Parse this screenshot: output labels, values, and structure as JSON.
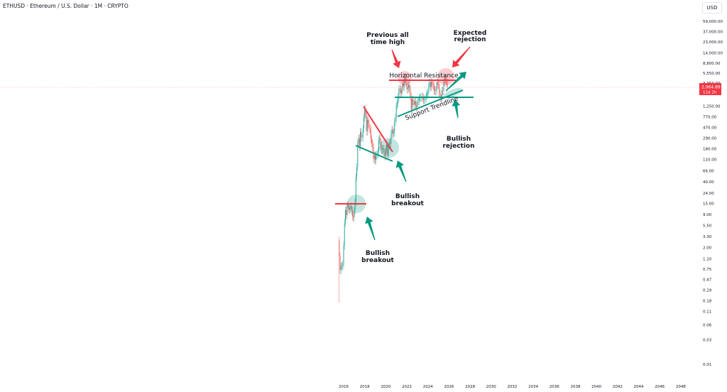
{
  "header": {
    "title": "ETHUSD · Ethereum / U.S. Dollar · 1M · CRYPTO",
    "currency_button": "USD"
  },
  "price_label": {
    "price": "2,964.89",
    "countdown": "11d 2h",
    "color": "#f23645"
  },
  "colors": {
    "up": "#26a69a",
    "down": "#ef5350",
    "annotation_green": "#089981",
    "annotation_red": "#f23645"
  },
  "annotations": {
    "prev_ath": [
      "Previous all",
      "time high"
    ],
    "expected_rejection": [
      "Expected",
      "rejection"
    ],
    "horizontal_resistance": "Horizontal Resistance",
    "support_trendline": "Support Trendline",
    "bullish_rejection": [
      "Bullish",
      "rejection"
    ],
    "bullish_breakout_1": [
      "Bullish",
      "breakout"
    ],
    "bullish_breakout_2": [
      "Bullish",
      "breakout"
    ]
  },
  "chart_data": {
    "type": "candlestick",
    "title": "ETHUSD · Ethereum / U.S. Dollar · 1M · CRYPTO",
    "y_scale": "log",
    "ylim": [
      0.01,
      59000
    ],
    "xlim": [
      2015.5,
      2049
    ],
    "y_ticks": [
      "59,000.00",
      "37,000.00",
      "23,000.00",
      "14,000.00",
      "8,800.00",
      "5,550.00",
      "3,350.00",
      "1,250.00",
      "770.00",
      "470.00",
      "290.00",
      "180.00",
      "110.00",
      "66.00",
      "40.00",
      "24.00",
      "15.00",
      "9.00",
      "5.50",
      "3.30",
      "2.00",
      "1.20",
      "0.75",
      "0.47",
      "0.29",
      "0.18",
      "0.11",
      "0.06",
      "0.03",
      "0.01"
    ],
    "x_ticks": [
      "2016",
      "2018",
      "2020",
      "2022",
      "2024",
      "2026",
      "2028",
      "2030",
      "2032",
      "2034",
      "2036",
      "2038",
      "2040",
      "2042",
      "2044",
      "2046",
      "2048"
    ],
    "start": "2015-08",
    "monthly_close": [
      1.35,
      0.73,
      0.87,
      0.87,
      0.93,
      2.2,
      6.3,
      11,
      8.8,
      14,
      12.5,
      11.4,
      11.9,
      13.2,
      11,
      8.5,
      8.0,
      10.7,
      16,
      50,
      79,
      230,
      290,
      200,
      390,
      300,
      305,
      447,
      755,
      1118,
      856,
      397,
      669,
      578,
      455,
      433,
      283,
      233,
      198,
      114,
      133,
      107,
      136,
      141,
      162,
      268,
      291,
      218,
      172,
      180,
      183,
      152,
      130,
      180,
      218,
      133,
      206,
      231,
      226,
      345,
      434,
      360,
      386,
      616,
      737,
      1312,
      1419,
      1918,
      2773,
      2714,
      2275,
      2536,
      3434,
      3001,
      4288,
      4630,
      3683,
      2688,
      2919,
      3283,
      2730,
      1942,
      1067,
      1679,
      1554,
      1328,
      1572,
      1295,
      1196,
      1585,
      1605,
      1822,
      1870,
      1874,
      1934,
      1856,
      1646,
      1671,
      1815,
      2052,
      2282,
      2283,
      3340,
      3647,
      3015,
      3762,
      3433,
      3232,
      2513,
      2602,
      2518,
      3705,
      3336,
      3300,
      2237,
      1822,
      1794,
      2528,
      2486,
      3698,
      4390,
      4145,
      3850,
      2964.89
    ],
    "grid": false
  }
}
